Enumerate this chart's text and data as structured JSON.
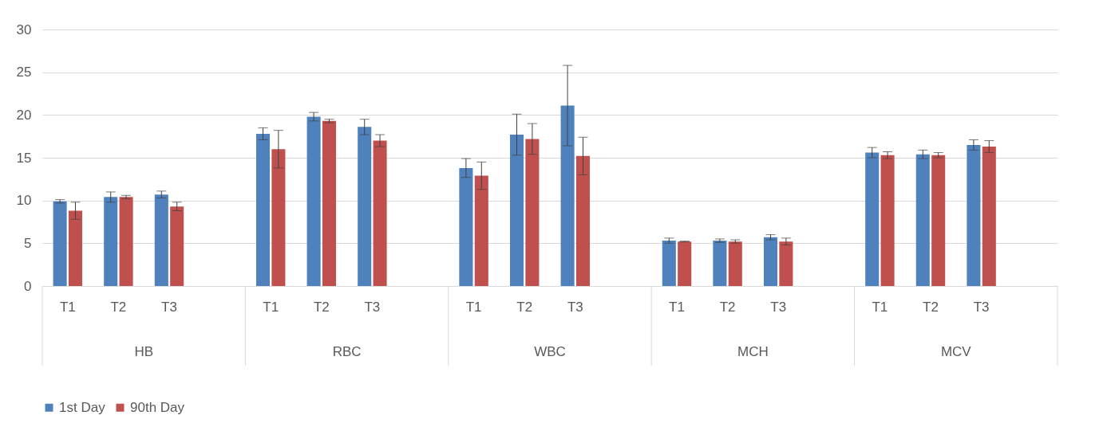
{
  "chart_data": {
    "type": "bar",
    "categories": [
      "T1",
      "T2",
      "T3",
      null,
      "T1",
      "T2",
      "T3",
      null,
      "T1",
      "T2",
      "T3",
      null,
      "T1",
      "T2",
      "T3",
      null,
      "T1",
      "T2",
      "T3",
      null
    ],
    "annotations": [
      "HB",
      "RBC",
      "WBC",
      "MCH",
      "MCV"
    ],
    "series": [
      {
        "name": "1st Day",
        "color": "#4f81bd",
        "values": [
          9.9,
          10.4,
          10.7,
          null,
          17.8,
          19.8,
          18.6,
          null,
          13.8,
          17.7,
          21.1,
          null,
          5.3,
          5.3,
          5.7,
          null,
          15.6,
          15.4,
          16.5,
          null
        ],
        "errors": [
          0.2,
          0.6,
          0.4,
          null,
          0.7,
          0.5,
          0.9,
          null,
          1.1,
          2.4,
          4.7,
          null,
          0.3,
          0.2,
          0.3,
          null,
          0.6,
          0.5,
          0.6,
          null
        ]
      },
      {
        "name": "90th Day",
        "color": "#c0504d",
        "values": [
          8.8,
          10.4,
          9.3,
          null,
          16.0,
          19.3,
          17.0,
          null,
          12.9,
          17.2,
          15.2,
          null,
          5.2,
          5.2,
          5.2,
          null,
          15.3,
          15.3,
          16.3,
          null
        ],
        "errors": [
          1.0,
          0.2,
          0.5,
          null,
          2.2,
          0.2,
          0.7,
          null,
          1.6,
          1.8,
          2.2,
          null,
          0.05,
          0.2,
          0.4,
          null,
          0.4,
          0.3,
          0.7,
          null
        ]
      }
    ],
    "ylim": [
      0,
      30
    ],
    "yticks": [
      0,
      5,
      10,
      15,
      20,
      25,
      30
    ],
    "grid": "y",
    "legend": "bottom"
  }
}
